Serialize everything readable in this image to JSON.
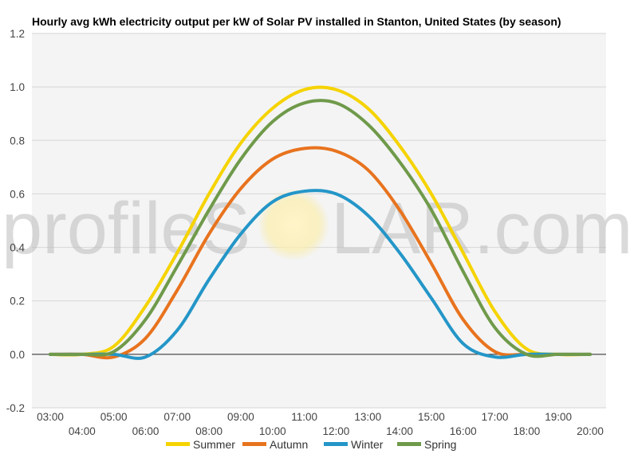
{
  "chart_data": {
    "type": "line",
    "title": "Hourly avg kWh electricity output per kW of Solar PV installed in Stanton, United States (by season)",
    "xlabel": "",
    "ylabel": "",
    "ylim": [
      -0.2,
      1.2
    ],
    "yticks": [
      "-0.2",
      "0.0",
      "0.2",
      "0.4",
      "0.6",
      "0.8",
      "1.0",
      "1.2"
    ],
    "grid": true,
    "legend_position": "bottom",
    "categories": [
      "03:00",
      "04:00",
      "05:00",
      "06:00",
      "07:00",
      "08:00",
      "09:00",
      "10:00",
      "11:00",
      "12:00",
      "13:00",
      "14:00",
      "15:00",
      "16:00",
      "17:00",
      "18:00",
      "19:00",
      "20:00"
    ],
    "series": [
      {
        "name": "Summer",
        "color": "#f5d300",
        "values": [
          0,
          0,
          0.03,
          0.18,
          0.38,
          0.6,
          0.79,
          0.92,
          0.99,
          0.99,
          0.92,
          0.78,
          0.6,
          0.38,
          0.16,
          0.02,
          0,
          0
        ]
      },
      {
        "name": "Autumn",
        "color": "#e8731e",
        "values": [
          0,
          0,
          -0.01,
          0.06,
          0.24,
          0.45,
          0.62,
          0.73,
          0.77,
          0.76,
          0.69,
          0.54,
          0.34,
          0.13,
          0.01,
          0,
          0,
          0
        ]
      },
      {
        "name": "Winter",
        "color": "#2496c8",
        "values": [
          0,
          0,
          0,
          -0.01,
          0.09,
          0.28,
          0.45,
          0.57,
          0.61,
          0.6,
          0.52,
          0.38,
          0.21,
          0.04,
          -0.01,
          0,
          0,
          0
        ]
      },
      {
        "name": "Spring",
        "color": "#6f9a4a",
        "values": [
          0,
          0,
          0.01,
          0.13,
          0.33,
          0.54,
          0.73,
          0.87,
          0.94,
          0.94,
          0.86,
          0.72,
          0.54,
          0.31,
          0.1,
          0,
          0,
          0
        ]
      }
    ]
  },
  "watermark": {
    "left": "profileS",
    "right": "LAR.com"
  }
}
